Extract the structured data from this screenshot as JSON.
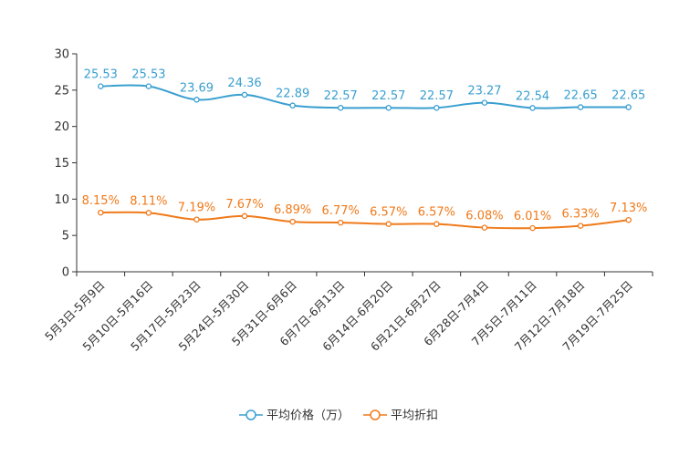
{
  "chart_data": {
    "type": "line",
    "title": "",
    "xlabel": "",
    "ylabel": "",
    "ylim": [
      0,
      30
    ],
    "yticks": [
      0,
      5,
      10,
      15,
      20,
      25,
      30
    ],
    "grid": false,
    "legend_position": "bottom-center",
    "categories": [
      "5月3日-5月9日",
      "5月10日-5月16日",
      "5月17日-5月23日",
      "5月24日-5月30日",
      "5月31日-6月6日",
      "6月7日-6月13日",
      "6月14日-6月20日",
      "6月21日-6月27日",
      "6月28日-7月4日",
      "7月5日-7月11日",
      "7月12日-7月18日",
      "7月19日-7月25日"
    ],
    "series": [
      {
        "name": "平均价格（万）",
        "color": "#3a9fd0",
        "values": [
          25.53,
          25.53,
          23.69,
          24.36,
          22.89,
          22.57,
          22.57,
          22.57,
          23.27,
          22.54,
          22.65,
          22.65
        ],
        "labels": [
          "25.53",
          "25.53",
          "23.69",
          "24.36",
          "22.89",
          "22.57",
          "22.57",
          "22.57",
          "23.27",
          "22.54",
          "22.65",
          "22.65"
        ]
      },
      {
        "name": "平均折扣",
        "color": "#f07a1a",
        "values": [
          8.15,
          8.11,
          7.19,
          7.67,
          6.89,
          6.77,
          6.57,
          6.57,
          6.08,
          6.01,
          6.33,
          7.13
        ],
        "labels": [
          "8.15%",
          "8.11%",
          "7.19%",
          "7.67%",
          "6.89%",
          "6.77%",
          "6.57%",
          "6.57%",
          "6.08%",
          "6.01%",
          "6.33%",
          "7.13%"
        ]
      }
    ]
  }
}
